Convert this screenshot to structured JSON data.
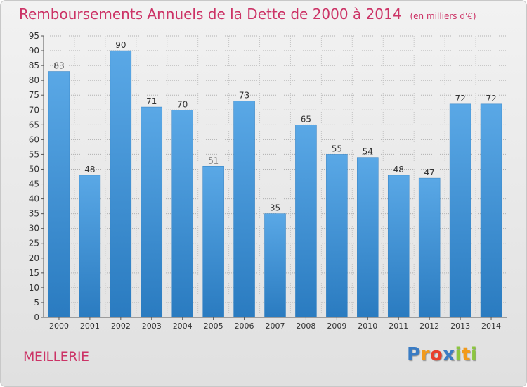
{
  "chart_data": {
    "type": "bar",
    "title": "Remboursements Annuels de la Dette de 2000 à 2014",
    "subtitle": "(en milliers d'€)",
    "categories": [
      "2000",
      "2001",
      "2002",
      "2003",
      "2004",
      "2005",
      "2006",
      "2007",
      "2008",
      "2009",
      "2010",
      "2011",
      "2012",
      "2013",
      "2014"
    ],
    "values": [
      83,
      48,
      90,
      71,
      70,
      51,
      73,
      35,
      65,
      55,
      54,
      48,
      47,
      72,
      72
    ],
    "ylim": [
      0,
      95
    ],
    "ytick_step": 5,
    "grid": true,
    "bar_color": "#5aa8e6",
    "bar_color_dark": "#2a7bc0",
    "title_color": "#cc3366"
  },
  "footer": {
    "commune": "MEILLERIE"
  },
  "logo": {
    "text": "Proxiti",
    "letters": [
      "P",
      "r",
      "o",
      "x",
      "i",
      "t",
      "i"
    ],
    "colors": [
      "#3a7cc4",
      "#f29a1b",
      "#e8402e",
      "#3a7cc4",
      "#8cc63f",
      "#f29a1b",
      "#8cc63f"
    ]
  }
}
